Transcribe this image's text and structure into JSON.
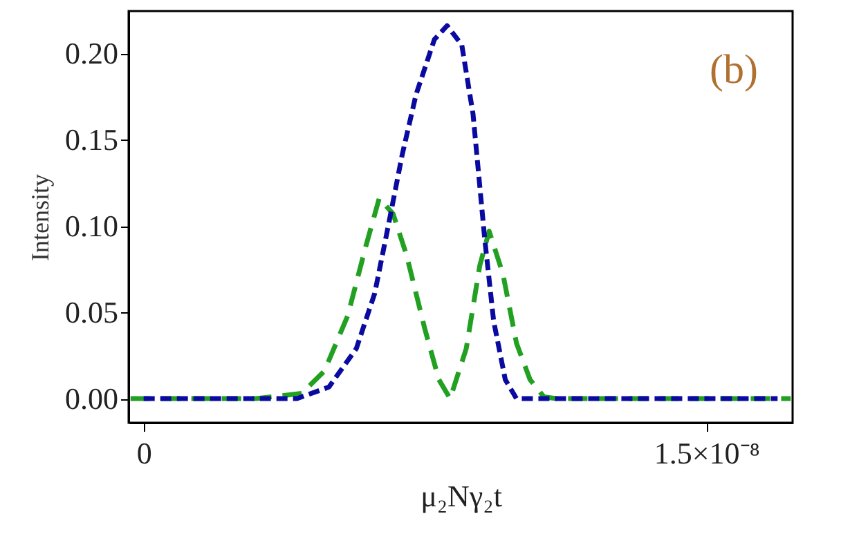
{
  "chart_data": {
    "type": "line",
    "xlabel": "μ₂Nγ₂t",
    "ylabel": "Intensity",
    "annotations": [
      "(b)"
    ],
    "xlim": [
      -4e-10,
      1.73e-08
    ],
    "xticks": [
      0,
      {
        "value": 1.5e-08,
        "label": "1.5×10⁻⁸"
      }
    ],
    "ylim": [
      -0.014,
      0.2245
    ],
    "yticks": [
      {
        "value": 0,
        "label": "0.00"
      },
      {
        "value": 0.05,
        "label": "0.05"
      },
      {
        "value": 0.1,
        "label": "0.10"
      },
      {
        "value": 0.15,
        "label": "0.15"
      },
      {
        "value": 0.2,
        "label": "0.20"
      }
    ],
    "grid": false,
    "marker": "none",
    "series": [
      {
        "color": "#22a022",
        "line_style": "dashed",
        "x": [
          -3.5e-10,
          3e-09,
          4.21e-09,
          4.82e-09,
          5.44e-09,
          5.92e-09,
          6.28e-09,
          6.65e-09,
          7.01e-09,
          7.5e-09,
          7.87e-09,
          8.17e-09,
          8.6e-09,
          8.96e-09,
          9.21e-09,
          9.58e-09,
          9.94e-09,
          1.03e-08,
          1.067e-08,
          1.1e-08,
          1.4e-08,
          1.725e-08
        ],
        "values": [
          0,
          0,
          0.003,
          0.016,
          0.048,
          0.088,
          0.116,
          0.107,
          0.083,
          0.04,
          0.011,
          0,
          0.029,
          0.077,
          0.097,
          0.072,
          0.032,
          0.011,
          0.001,
          0,
          0,
          0
        ]
      },
      {
        "color": "#0a0aa0",
        "line_style": "dashed",
        "x": [
          0,
          2e-09,
          4.09e-09,
          4.94e-09,
          5.67e-09,
          6.16e-09,
          6.53e-09,
          6.89e-09,
          7.26e-09,
          7.75e-09,
          8.09e-09,
          8.48e-09,
          8.78e-09,
          9.09e-09,
          9.33e-09,
          9.64e-09,
          9.94e-09,
          1.3e-08,
          1.69e-08
        ],
        "values": [
          0,
          0,
          0,
          0.0067,
          0.029,
          0.061,
          0.101,
          0.141,
          0.176,
          0.208,
          0.216,
          0.205,
          0.165,
          0.093,
          0.045,
          0.011,
          0,
          0,
          0
        ]
      }
    ]
  }
}
